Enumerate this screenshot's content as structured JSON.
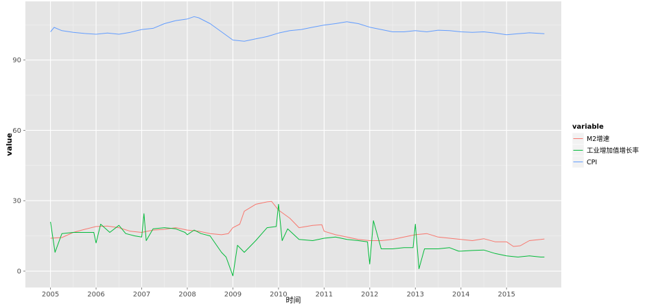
{
  "chart_data": {
    "type": "line",
    "xlabel": "时间",
    "ylabel": "value",
    "xlim": [
      2004.45,
      2016.2
    ],
    "ylim": [
      -7,
      115
    ],
    "x_ticks": [
      2005,
      2006,
      2007,
      2008,
      2009,
      2010,
      2011,
      2012,
      2013,
      2014,
      2015
    ],
    "y_ticks": [
      0,
      30,
      60,
      90
    ],
    "grid": true,
    "legend": {
      "title": "variable",
      "position": "right"
    },
    "series": [
      {
        "name": "M2增速",
        "color": "#F8766D",
        "points": [
          [
            2005.0,
            14.0
          ],
          [
            2005.25,
            14.3
          ],
          [
            2005.5,
            16.5
          ],
          [
            2005.75,
            17.8
          ],
          [
            2006.0,
            19.0
          ],
          [
            2006.25,
            19.2
          ],
          [
            2006.5,
            18.5
          ],
          [
            2006.75,
            17.0
          ],
          [
            2007.0,
            16.5
          ],
          [
            2007.25,
            17.5
          ],
          [
            2007.5,
            17.8
          ],
          [
            2007.75,
            18.5
          ],
          [
            2008.0,
            17.5
          ],
          [
            2008.25,
            17.0
          ],
          [
            2008.5,
            16.0
          ],
          [
            2008.75,
            15.5
          ],
          [
            2008.9,
            16.0
          ],
          [
            2009.0,
            18.5
          ],
          [
            2009.15,
            20.0
          ],
          [
            2009.25,
            25.5
          ],
          [
            2009.5,
            28.5
          ],
          [
            2009.75,
            29.5
          ],
          [
            2009.85,
            29.7
          ],
          [
            2010.0,
            26.0
          ],
          [
            2010.25,
            22.5
          ],
          [
            2010.45,
            18.5
          ],
          [
            2010.75,
            19.5
          ],
          [
            2010.95,
            19.8
          ],
          [
            2011.0,
            17.0
          ],
          [
            2011.25,
            15.5
          ],
          [
            2011.5,
            14.5
          ],
          [
            2011.75,
            13.5
          ],
          [
            2012.0,
            13.0
          ],
          [
            2012.25,
            13.0
          ],
          [
            2012.5,
            13.5
          ],
          [
            2012.75,
            14.5
          ],
          [
            2013.0,
            15.5
          ],
          [
            2013.25,
            16.0
          ],
          [
            2013.5,
            14.5
          ],
          [
            2013.75,
            14.0
          ],
          [
            2014.0,
            13.5
          ],
          [
            2014.25,
            13.0
          ],
          [
            2014.5,
            13.8
          ],
          [
            2014.75,
            12.5
          ],
          [
            2015.0,
            12.5
          ],
          [
            2015.15,
            10.5
          ],
          [
            2015.3,
            10.8
          ],
          [
            2015.5,
            13.0
          ],
          [
            2015.75,
            13.5
          ],
          [
            2015.83,
            13.7
          ]
        ]
      },
      {
        "name": "工业增加值增长率",
        "color": "#00BA38",
        "points": [
          [
            2005.0,
            21.0
          ],
          [
            2005.1,
            8.0
          ],
          [
            2005.25,
            16.0
          ],
          [
            2005.5,
            16.5
          ],
          [
            2005.75,
            16.5
          ],
          [
            2005.95,
            16.5
          ],
          [
            2006.0,
            12.0
          ],
          [
            2006.1,
            20.0
          ],
          [
            2006.3,
            16.5
          ],
          [
            2006.5,
            19.5
          ],
          [
            2006.65,
            16.0
          ],
          [
            2006.85,
            15.0
          ],
          [
            2007.0,
            14.5
          ],
          [
            2007.05,
            24.5
          ],
          [
            2007.1,
            13.0
          ],
          [
            2007.25,
            18.0
          ],
          [
            2007.5,
            18.5
          ],
          [
            2007.75,
            18.0
          ],
          [
            2007.95,
            16.5
          ],
          [
            2008.0,
            15.5
          ],
          [
            2008.15,
            17.5
          ],
          [
            2008.3,
            16.0
          ],
          [
            2008.5,
            15.0
          ],
          [
            2008.75,
            8.0
          ],
          [
            2008.85,
            6.0
          ],
          [
            2009.0,
            -2.0
          ],
          [
            2009.1,
            11.0
          ],
          [
            2009.25,
            8.0
          ],
          [
            2009.5,
            13.0
          ],
          [
            2009.75,
            18.5
          ],
          [
            2009.95,
            19.0
          ],
          [
            2010.0,
            28.5
          ],
          [
            2010.08,
            13.0
          ],
          [
            2010.2,
            18.0
          ],
          [
            2010.45,
            13.5
          ],
          [
            2010.75,
            13.0
          ],
          [
            2011.0,
            14.0
          ],
          [
            2011.25,
            14.5
          ],
          [
            2011.5,
            13.5
          ],
          [
            2011.75,
            13.0
          ],
          [
            2011.95,
            12.5
          ],
          [
            2012.0,
            3.0
          ],
          [
            2012.08,
            21.5
          ],
          [
            2012.25,
            9.5
          ],
          [
            2012.5,
            9.5
          ],
          [
            2012.75,
            10.0
          ],
          [
            2012.95,
            10.0
          ],
          [
            2013.0,
            20.0
          ],
          [
            2013.08,
            1.0
          ],
          [
            2013.2,
            9.5
          ],
          [
            2013.5,
            9.5
          ],
          [
            2013.75,
            10.0
          ],
          [
            2013.95,
            8.5
          ],
          [
            2014.0,
            8.5
          ],
          [
            2014.25,
            8.8
          ],
          [
            2014.5,
            9.0
          ],
          [
            2014.75,
            7.5
          ],
          [
            2015.0,
            6.5
          ],
          [
            2015.25,
            6.0
          ],
          [
            2015.5,
            6.5
          ],
          [
            2015.75,
            6.0
          ],
          [
            2015.83,
            6.0
          ]
        ]
      },
      {
        "name": "CPI",
        "color": "#619CFF",
        "points": [
          [
            2005.0,
            102.0
          ],
          [
            2005.08,
            103.9
          ],
          [
            2005.25,
            102.5
          ],
          [
            2005.5,
            101.8
          ],
          [
            2005.75,
            101.3
          ],
          [
            2006.0,
            101.0
          ],
          [
            2006.25,
            101.5
          ],
          [
            2006.5,
            101.0
          ],
          [
            2006.75,
            101.8
          ],
          [
            2007.0,
            103.0
          ],
          [
            2007.25,
            103.5
          ],
          [
            2007.5,
            105.5
          ],
          [
            2007.75,
            106.8
          ],
          [
            2008.0,
            107.5
          ],
          [
            2008.15,
            108.5
          ],
          [
            2008.25,
            108.0
          ],
          [
            2008.5,
            105.5
          ],
          [
            2008.75,
            102.0
          ],
          [
            2009.0,
            98.5
          ],
          [
            2009.25,
            98.0
          ],
          [
            2009.5,
            99.0
          ],
          [
            2009.75,
            100.0
          ],
          [
            2010.0,
            101.5
          ],
          [
            2010.25,
            102.5
          ],
          [
            2010.5,
            103.0
          ],
          [
            2010.75,
            104.0
          ],
          [
            2011.0,
            104.9
          ],
          [
            2011.25,
            105.5
          ],
          [
            2011.5,
            106.3
          ],
          [
            2011.75,
            105.5
          ],
          [
            2012.0,
            104.0
          ],
          [
            2012.25,
            103.0
          ],
          [
            2012.5,
            102.0
          ],
          [
            2012.75,
            102.0
          ],
          [
            2013.0,
            102.5
          ],
          [
            2013.25,
            102.0
          ],
          [
            2013.5,
            102.7
          ],
          [
            2013.75,
            102.5
          ],
          [
            2014.0,
            102.0
          ],
          [
            2014.25,
            101.8
          ],
          [
            2014.5,
            102.0
          ],
          [
            2014.75,
            101.5
          ],
          [
            2015.0,
            100.8
          ],
          [
            2015.25,
            101.2
          ],
          [
            2015.5,
            101.6
          ],
          [
            2015.83,
            101.2
          ]
        ]
      }
    ]
  }
}
